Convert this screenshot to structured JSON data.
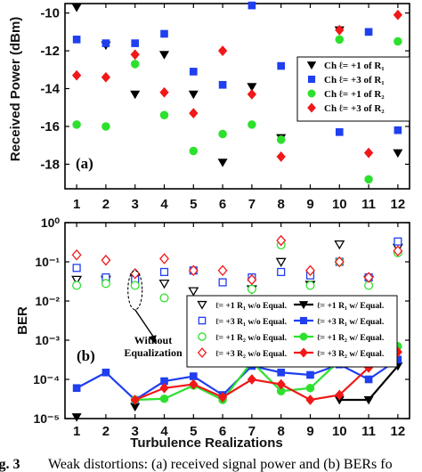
{
  "caption": {
    "label": "ig. 3",
    "text": "Weak distortions: (a) received signal power and (b) BERs fo"
  },
  "chart_data": [
    {
      "type": "scatter",
      "panel_label": "(a)",
      "xlabel": "",
      "ylabel": "Received Power (dBm)",
      "x": [
        1,
        2,
        3,
        4,
        5,
        6,
        7,
        8,
        9,
        10,
        11,
        12
      ],
      "xlim": [
        0.6,
        12.4
      ],
      "ylim": [
        -19.3,
        -9.5
      ],
      "yticks": [
        -10,
        -12,
        -14,
        -16,
        -18
      ],
      "ytick_labels": [
        "-10",
        "-12",
        "-14",
        "-16",
        "-18"
      ],
      "legend_position": "right",
      "series": [
        {
          "name": "Ch ℓ= +1 of R₁",
          "marker": "triangle-down",
          "color": "#000000",
          "filled": true,
          "values": [
            -9.7,
            -11.7,
            -14.3,
            -12.2,
            -14.3,
            -17.9,
            -13.9,
            -16.6,
            -14.9,
            -10.9,
            -14.0,
            -17.4
          ]
        },
        {
          "name": "Ch ℓ= +3 of R₁",
          "marker": "square",
          "color": "#1f3ff0",
          "filled": true,
          "values": [
            -11.4,
            -11.6,
            -11.6,
            -11.1,
            -13.1,
            -13.8,
            -9.6,
            -12.8,
            -14.5,
            -16.3,
            -11.0,
            -16.2
          ]
        },
        {
          "name": "Ch ℓ= +1 of R₂",
          "marker": "circle",
          "color": "#2ee02e",
          "filled": true,
          "values": [
            -15.9,
            -16.0,
            -12.7,
            -15.4,
            -17.3,
            -16.4,
            -15.9,
            -16.7,
            -14.8,
            -11.4,
            -18.8,
            -11.5
          ]
        },
        {
          "name": "Ch ℓ= +3 of R₂",
          "marker": "diamond",
          "color": "#f01818",
          "filled": true,
          "values": [
            -13.3,
            -13.4,
            -12.2,
            -14.2,
            -15.3,
            -12.0,
            -14.3,
            -17.6,
            -14.3,
            -10.9,
            -17.4,
            -10.1
          ]
        }
      ]
    },
    {
      "type": "scatter",
      "panel_label": "(b)",
      "xlabel": "Turbulence Realizations",
      "ylabel": "BER",
      "x": [
        1,
        2,
        3,
        4,
        5,
        6,
        7,
        8,
        9,
        10,
        11,
        12
      ],
      "xlim": [
        0.6,
        12.4
      ],
      "yscale": "log",
      "ylim": [
        1e-05,
        1
      ],
      "yticks": [
        1,
        0.1,
        0.01,
        0.001,
        0.0001,
        1e-05
      ],
      "ytick_labels": [
        "10⁰",
        "10⁻¹",
        "10⁻²",
        "10⁻³",
        "10⁻⁴",
        "10⁻⁵"
      ],
      "legend_position": "right",
      "annotation": {
        "text_line1": "Without",
        "text_line2": "Equalization",
        "x": 3,
        "y_top": 0.06,
        "y_bottom": 0.006,
        "arrow_to_y": 0.0008
      },
      "series": [
        {
          "name": "ℓ= +1 R₁ w/o Equal.",
          "marker": "triangle-down",
          "color": "#000000",
          "filled": false,
          "values": [
            0.035,
            0.035,
            0.04,
            0.028,
            0.018,
            0.008,
            0.02,
            0.1,
            0.026,
            0.28,
            0.035,
            0.23
          ]
        },
        {
          "name": "ℓ= +3 R₁ w/o Equal.",
          "marker": "square",
          "color": "#1f3ff0",
          "filled": false,
          "values": [
            0.07,
            0.04,
            0.035,
            0.055,
            0.06,
            0.03,
            0.04,
            0.055,
            0.045,
            0.1,
            0.04,
            0.33
          ]
        },
        {
          "name": "ℓ= +1 R₂ w/o Equal.",
          "marker": "circle",
          "color": "#2ee02e",
          "filled": false,
          "values": [
            0.025,
            0.028,
            0.025,
            0.012,
            0.008,
            0.0075,
            0.02,
            0.27,
            0.025,
            0.1,
            0.025,
            0.17
          ]
        },
        {
          "name": "ℓ= +3 R₂ w/o Equal.",
          "marker": "diamond",
          "color": "#f01818",
          "filled": false,
          "values": [
            0.15,
            0.11,
            0.05,
            0.12,
            0.06,
            0.06,
            0.035,
            0.35,
            0.06,
            0.1,
            0.04,
            0.19
          ]
        },
        {
          "name": "ℓ= +1 R₁ w/ Equal.",
          "marker": "triangle-down",
          "color": "#000000",
          "filled": true,
          "values": [
            1.1e-05,
            null,
            2e-05,
            null,
            null,
            null,
            null,
            null,
            null,
            3e-05,
            3e-05,
            0.00022
          ]
        },
        {
          "name": "ℓ= +3 R₁ w/ Equal.",
          "marker": "square",
          "color": "#1f3ff0",
          "filled": true,
          "values": [
            6e-05,
            0.00015,
            3e-05,
            9e-05,
            0.00012,
            4e-05,
            0.00022,
            0.00015,
            0.00013,
            0.00024,
            0.0001,
            0.00032
          ]
        },
        {
          "name": "ℓ= +1 R₂ w/ Equal.",
          "marker": "circle",
          "color": "#2ee02e",
          "filled": true,
          "values": [
            null,
            null,
            3e-05,
            3.2e-05,
            7e-05,
            3e-05,
            0.00028,
            5e-05,
            6e-05,
            0.0003,
            0.00035,
            0.0007
          ]
        },
        {
          "name": "ℓ= +3 R₂ w/ Equal.",
          "marker": "diamond",
          "color": "#f01818",
          "filled": true,
          "values": [
            null,
            null,
            3e-05,
            6e-05,
            7.5e-05,
            3.5e-05,
            0.0001,
            7.5e-05,
            3e-05,
            4e-05,
            0.0002,
            0.0005
          ]
        }
      ]
    }
  ]
}
